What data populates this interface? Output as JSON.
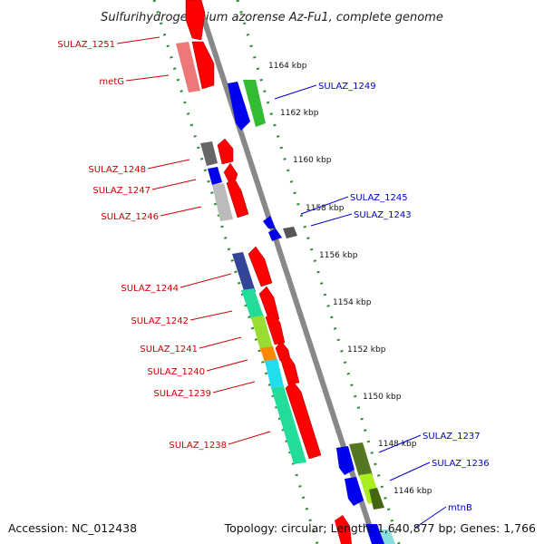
{
  "title": "Sulfurihydrogenibium azorense Az-Fu1, complete genome",
  "footer": {
    "accession": "Accession: NC_012438",
    "summary": "Topology: circular; Length: 1,640,877 bp; Genes: 1,766"
  },
  "scale": [
    "1164 kbp",
    "1162 kbp",
    "1160 kbp",
    "1158 kbp",
    "1156 kbp",
    "1154 kbp",
    "1152 kbp",
    "1150 kbp",
    "1148 kbp",
    "1146 kbp"
  ],
  "left_labels": [
    "SULAZ_1251",
    "metG",
    "SULAZ_1248",
    "SULAZ_1247",
    "SULAZ_1246",
    "SULAZ_1244",
    "SULAZ_1242",
    "SULAZ_1241",
    "SULAZ_1240",
    "SULAZ_1239",
    "SULAZ_1238"
  ],
  "right_labels": [
    "SULAZ_1249",
    "SULAZ_1245",
    "SULAZ_1243",
    "SULAZ_1237",
    "SULAZ_1236",
    "mtnB"
  ],
  "colors": {
    "forward_strand": "#ff0000",
    "reverse_strand": "#0000ee",
    "backbone": "#888888",
    "tick_dots": "#2e8b2e",
    "left_label": "#cc0000",
    "right_label": "#0000cc"
  }
}
